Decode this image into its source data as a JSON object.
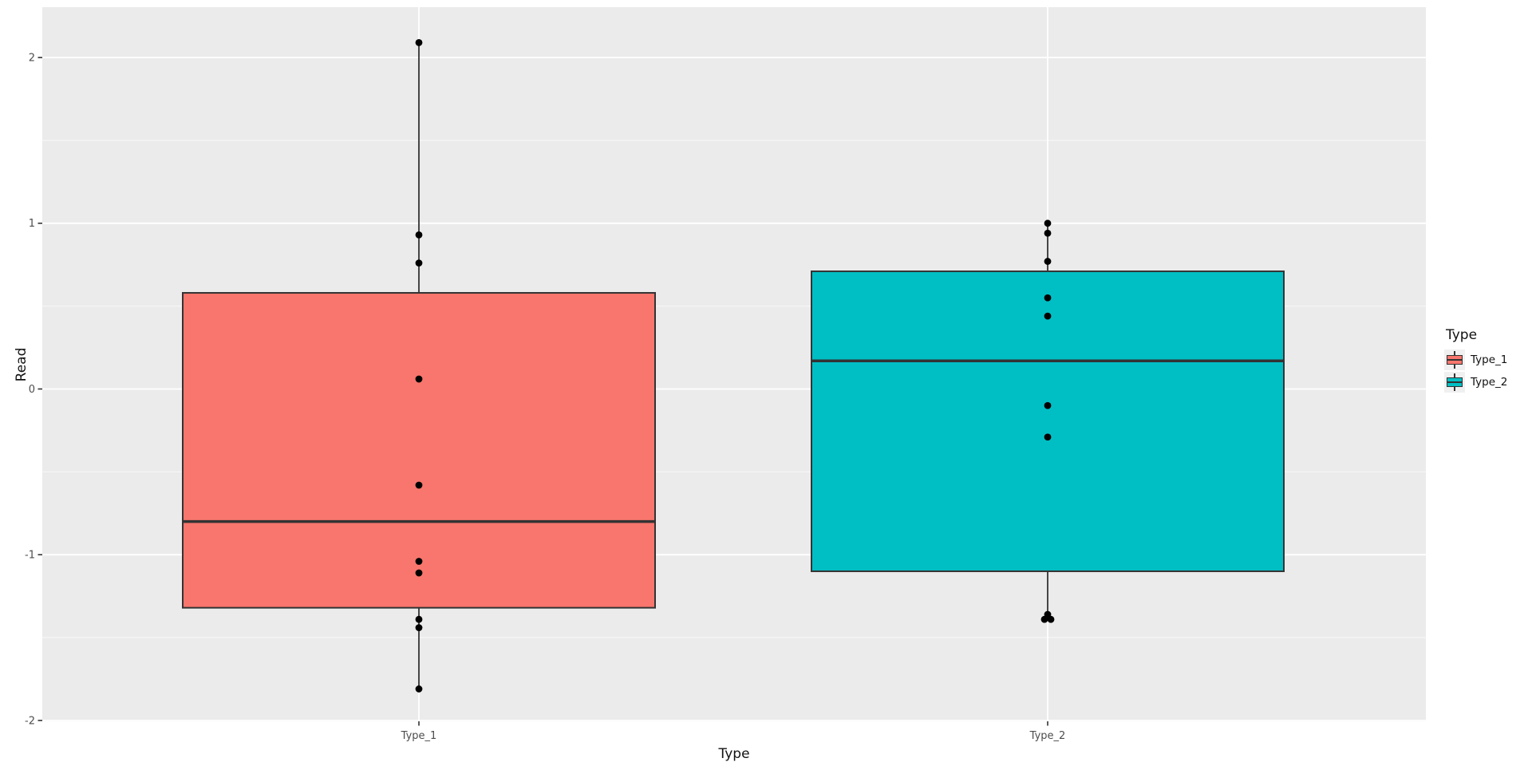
{
  "figure": {
    "background": "#FFFFFF",
    "panel_background": "#EBEBEB",
    "grid_color": "#FFFFFF",
    "box_outline": "#333333",
    "point_color": "#000000",
    "tick_label_color": "#4D4D4D",
    "title_color": "#111111"
  },
  "chart_data": {
    "type": "boxplot",
    "title": "",
    "xlabel": "Type",
    "ylabel": "Read",
    "x_categories": [
      "Type_1",
      "Type_2"
    ],
    "y_ticks": [
      2,
      1,
      0,
      -1,
      -2
    ],
    "y_tick_labels": [
      "2",
      "1",
      "0",
      "-1",
      "-2"
    ],
    "y_minor_ticks": [
      1.5,
      0.5,
      -0.5,
      -1.5
    ],
    "ylim": [
      -2.0,
      2.3
    ],
    "grid": true,
    "legend_position": "right",
    "series": [
      {
        "name": "Type_1",
        "fill": "#F8766D",
        "q1": -1.32,
        "median": -0.8,
        "q3": 0.58,
        "whisker_low": -1.81,
        "whisker_high": 2.09,
        "points": [
          {
            "y": 2.09
          },
          {
            "y": 0.93
          },
          {
            "y": 0.76
          },
          {
            "y": 0.06
          },
          {
            "y": -0.58
          },
          {
            "y": -1.04
          },
          {
            "y": -1.11
          },
          {
            "y": -1.39
          },
          {
            "y": -1.44
          },
          {
            "y": -1.81
          }
        ]
      },
      {
        "name": "Type_2",
        "fill": "#00BFC4",
        "q1": -1.1,
        "median": 0.17,
        "q3": 0.71,
        "whisker_low": -1.39,
        "whisker_high": 1.0,
        "points": [
          {
            "y": 1.0
          },
          {
            "y": 0.94
          },
          {
            "y": 0.77
          },
          {
            "y": 0.55
          },
          {
            "y": 0.44
          },
          {
            "y": -0.1
          },
          {
            "y": -0.29
          },
          {
            "y": -1.36
          },
          {
            "y": -1.39,
            "dx": -4
          },
          {
            "y": -1.39,
            "dx": 4
          }
        ]
      }
    ],
    "legend": {
      "title": "Type",
      "entries": [
        {
          "label": "Type_1",
          "color": "#F8766D"
        },
        {
          "label": "Type_2",
          "color": "#00BFC4"
        }
      ]
    }
  }
}
